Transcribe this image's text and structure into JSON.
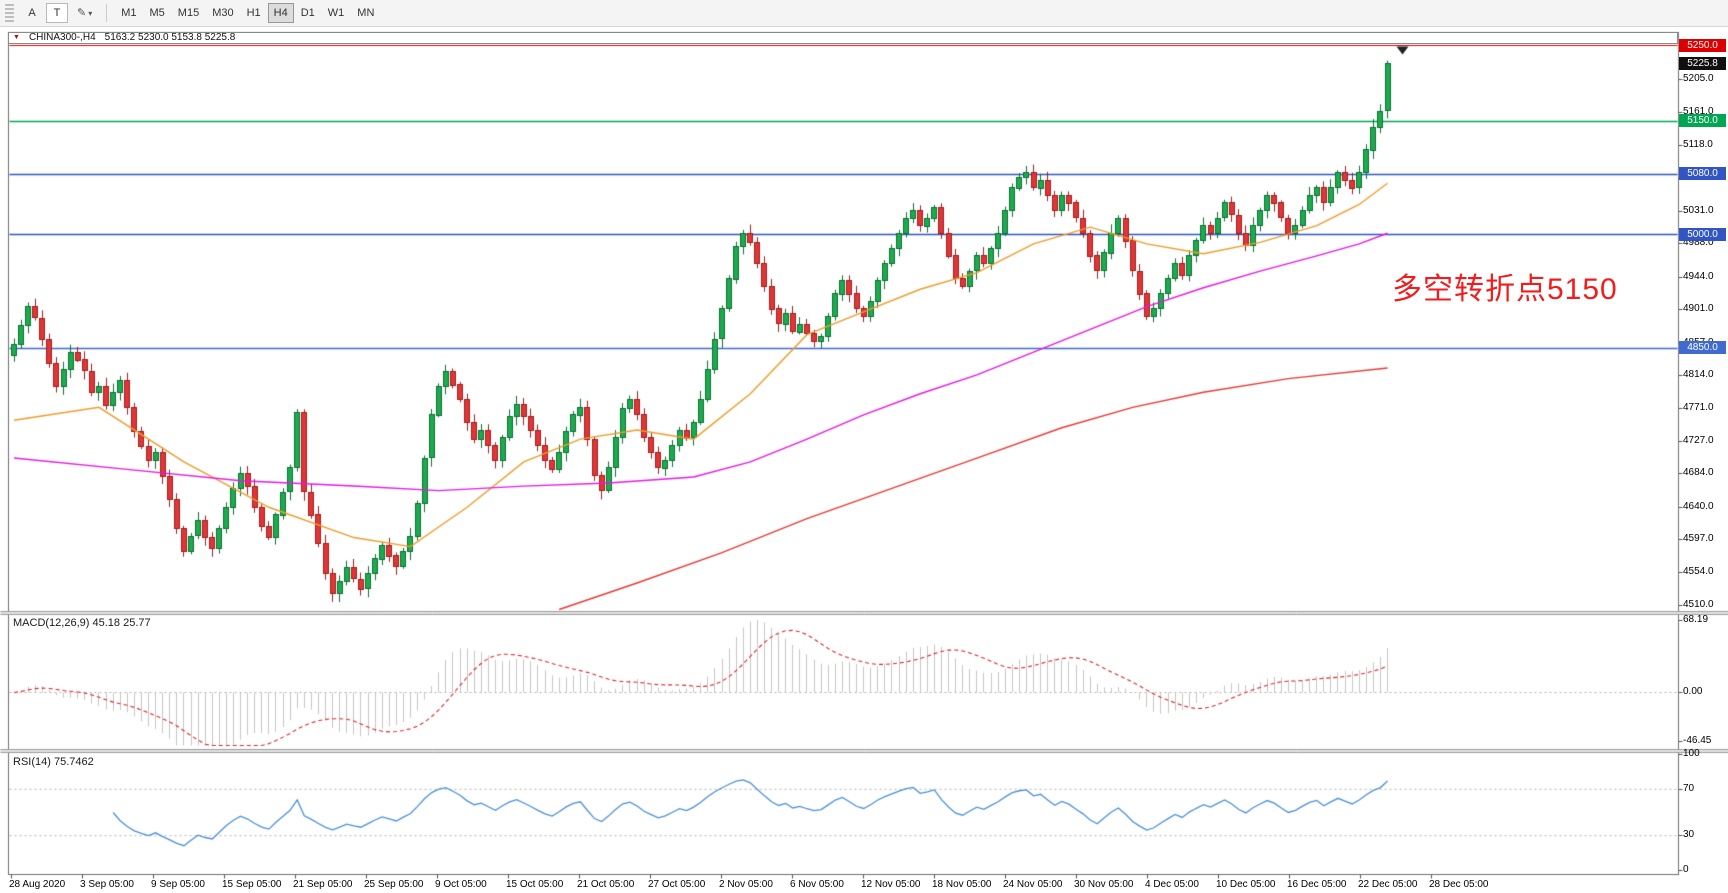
{
  "toolbar": {
    "tool_a": "A",
    "tool_t": "T",
    "timeframes": [
      "M1",
      "M5",
      "M15",
      "M30",
      "H1",
      "H4",
      "D1",
      "W1",
      "MN"
    ],
    "active_timeframe": "H4"
  },
  "chart_header": {
    "symbol_period": "CHINA300-,H4",
    "ohlc_text": "5163.2 5230.0 5153.8 5225.8"
  },
  "annotation": {
    "text": "多空转折点5150",
    "color": "#f31b1b"
  },
  "current_price_badge": {
    "label": "5225.8",
    "value": 5225.8,
    "color": "#101010"
  },
  "price_axis": {
    "ticks": [
      "5205.0",
      "5161.0",
      "5118.0",
      "5074.0",
      "5031.0",
      "4988.0",
      "4944.0",
      "4901.0",
      "4857.0",
      "4814.0",
      "4771.0",
      "4727.0",
      "4684.0",
      "4640.0",
      "4597.0",
      "4554.0",
      "4510.0"
    ]
  },
  "time_axis": {
    "labels": [
      "28 Aug 2020",
      "3 Sep 05:00",
      "9 Sep 05:00",
      "15 Sep 05:00",
      "21 Sep 05:00",
      "25 Sep 05:00",
      "9 Oct 05:00",
      "15 Oct 05:00",
      "21 Oct 05:00",
      "27 Oct 05:00",
      "2 Nov 05:00",
      "6 Nov 05:00",
      "12 Nov 05:00",
      "18 Nov 05:00",
      "24 Nov 05:00",
      "30 Nov 05:00",
      "4 Dec 05:00",
      "10 Dec 05:00",
      "16 Dec 05:00",
      "22 Dec 05:00",
      "28 Dec 05:00"
    ]
  },
  "macd_panel": {
    "name": "MACD(12,26,9)",
    "value_main": "45.18",
    "value_signal": "25.77",
    "ticks": [
      "68.19",
      "0.00",
      "-46.45"
    ],
    "tick_values": [
      68.19,
      0,
      -46.45
    ]
  },
  "rsi_panel": {
    "name": "RSI(14)",
    "value": "75.7462",
    "ticks": [
      "100",
      "70",
      "30",
      "0"
    ],
    "tick_values": [
      100,
      70,
      30,
      0
    ]
  },
  "chart_data": {
    "type": "candlestick",
    "symbol": "CHINA300-",
    "timeframe": "H4",
    "title": "CHINA300-,H4 5163.2 5230.0 5153.8 5225.8",
    "price_axis_range": [
      4510,
      5250
    ],
    "current_bar": {
      "open": 5163.2,
      "high": 5230.0,
      "low": 5153.8,
      "close": 5225.8
    },
    "first_open": 4840,
    "closes": [
      4855,
      4880,
      4905,
      4890,
      4862,
      4830,
      4800,
      4822,
      4845,
      4835,
      4820,
      4792,
      4800,
      4775,
      4792,
      4808,
      4772,
      4740,
      4720,
      4702,
      4712,
      4680,
      4650,
      4612,
      4582,
      4602,
      4622,
      4600,
      4586,
      4612,
      4640,
      4665,
      4685,
      4668,
      4640,
      4615,
      4600,
      4630,
      4660,
      4692,
      4765,
      4660,
      4630,
      4592,
      4552,
      4526,
      4542,
      4560,
      4545,
      4532,
      4552,
      4572,
      4590,
      4576,
      4562,
      4582,
      4602,
      4645,
      4705,
      4762,
      4800,
      4820,
      4802,
      4782,
      4752,
      4730,
      4742,
      4722,
      4702,
      4732,
      4760,
      4776,
      4760,
      4742,
      4722,
      4702,
      4690,
      4712,
      4740,
      4762,
      4772,
      4730,
      4682,
      4662,
      4692,
      4732,
      4770,
      4782,
      4762,
      4732,
      4712,
      4692,
      4702,
      4722,
      4742,
      4732,
      4752,
      4782,
      4822,
      4862,
      4902,
      4942,
      4985,
      5002,
      4990,
      4962,
      4932,
      4902,
      4882,
      4896,
      4872,
      4882,
      4870,
      4860,
      4866,
      4892,
      4922,
      4940,
      4922,
      4902,
      4892,
      4912,
      4940,
      4962,
      4982,
      5002,
      5022,
      5032,
      5012,
      5022,
      5036,
      5002,
      4972,
      4942,
      4932,
      4952,
      4972,
      4962,
      4982,
      5002,
      5032,
      5062,
      5076,
      5082,
      5062,
      5072,
      5052,
      5032,
      5052,
      5042,
      5022,
      5002,
      4972,
      4952,
      4976,
      5002,
      5022,
      4992,
      4952,
      4922,
      4892,
      4902,
      4922,
      4942,
      4962,
      4946,
      4972,
      4992,
      5012,
      5002,
      5022,
      5042,
      5026,
      5002,
      4986,
      5012,
      5032,
      5052,
      5042,
      5022,
      5002,
      5012,
      5032,
      5052,
      5062,
      5042,
      5062,
      5082,
      5072,
      5062,
      5082,
      5112,
      5142,
      5163.2,
      5225.8
    ],
    "horizontal_lines": [
      {
        "value": 5250.0,
        "label": "5250.0",
        "color": "#dd0000"
      },
      {
        "value": 5150.0,
        "label": "5150.0",
        "color": "#00a651"
      },
      {
        "value": 5080.0,
        "label": "5080.0",
        "color": "#3156c4"
      },
      {
        "value": 5000.0,
        "label": "5000.0",
        "color": "#3156c4"
      },
      {
        "value": 4850.0,
        "label": "4850.0",
        "color": "#3f6ad0"
      }
    ],
    "moving_averages": [
      {
        "name": "ma-fast",
        "color": "#ef9b28",
        "anchors": [
          [
            0,
            4755
          ],
          [
            12,
            4772
          ],
          [
            24,
            4700
          ],
          [
            36,
            4640
          ],
          [
            48,
            4600
          ],
          [
            56,
            4588
          ],
          [
            64,
            4640
          ],
          [
            72,
            4700
          ],
          [
            80,
            4730
          ],
          [
            88,
            4742
          ],
          [
            96,
            4730
          ],
          [
            104,
            4790
          ],
          [
            112,
            4868
          ],
          [
            120,
            4898
          ],
          [
            128,
            4928
          ],
          [
            136,
            4950
          ],
          [
            144,
            4988
          ],
          [
            152,
            5010
          ],
          [
            160,
            4988
          ],
          [
            168,
            4975
          ],
          [
            176,
            4990
          ],
          [
            184,
            5012
          ],
          [
            190,
            5040
          ],
          [
            194,
            5068
          ]
        ]
      },
      {
        "name": "ma-mid",
        "color": "#e419e4",
        "anchors": [
          [
            0,
            4705
          ],
          [
            16,
            4690
          ],
          [
            32,
            4675
          ],
          [
            48,
            4668
          ],
          [
            60,
            4662
          ],
          [
            72,
            4668
          ],
          [
            84,
            4672
          ],
          [
            96,
            4680
          ],
          [
            104,
            4700
          ],
          [
            112,
            4730
          ],
          [
            120,
            4762
          ],
          [
            128,
            4790
          ],
          [
            136,
            4815
          ],
          [
            144,
            4845
          ],
          [
            152,
            4875
          ],
          [
            160,
            4905
          ],
          [
            168,
            4930
          ],
          [
            176,
            4952
          ],
          [
            184,
            4972
          ],
          [
            190,
            4988
          ],
          [
            194,
            5002
          ]
        ]
      },
      {
        "name": "ma-slow",
        "color": "#e53935",
        "anchors": [
          [
            77,
            4505
          ],
          [
            88,
            4540
          ],
          [
            100,
            4580
          ],
          [
            112,
            4625
          ],
          [
            124,
            4665
          ],
          [
            136,
            4705
          ],
          [
            148,
            4745
          ],
          [
            158,
            4772
          ],
          [
            168,
            4792
          ],
          [
            180,
            4810
          ],
          [
            194,
            4824
          ]
        ]
      }
    ],
    "indicators": [
      {
        "name": "MACD",
        "params": "12,26,9",
        "current_main": 45.18,
        "current_signal": 25.77,
        "scale": [
          68.19,
          0.0,
          -46.45
        ]
      },
      {
        "name": "RSI",
        "params": "14",
        "current": 75.7462,
        "scale": [
          100,
          70,
          30,
          0
        ]
      }
    ]
  }
}
